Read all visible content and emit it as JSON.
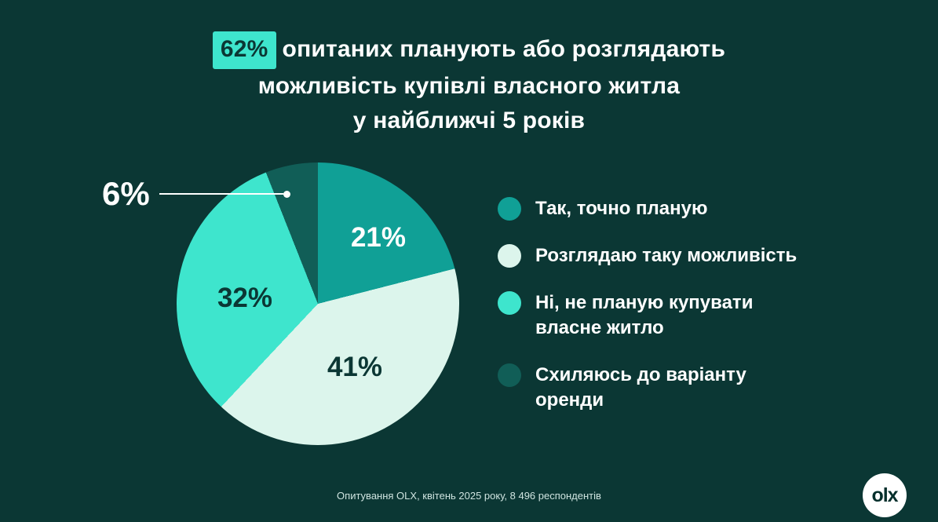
{
  "colors": {
    "background": "#0b3734",
    "text_light": "#ffffff",
    "text_dark": "#0b3734",
    "highlight_bg": "#3ee5cd",
    "callout": "#ffffff",
    "footer_text": "#cfe4e0",
    "logo_bg": "#ffffff",
    "logo_text": "#052f2c"
  },
  "title": {
    "highlight": "62%",
    "line1_rest": "опитаних планують або розглядають",
    "line2": "можливість купівлі власного житла",
    "line3": "у найближчі 5 років"
  },
  "chart_data": {
    "type": "pie",
    "title": "62% опитаних планують або розглядають можливість купівлі власного житла у найближчі 5 років",
    "legend_position": "right",
    "start_angle_deg": 0,
    "direction": "clockwise",
    "slices": [
      {
        "label": "Так, точно планую",
        "value": 21,
        "pct_label": "21%",
        "color": "#10a096"
      },
      {
        "label": "Розглядаю таку можливість",
        "value": 41,
        "pct_label": "41%",
        "color": "#dcf5ec"
      },
      {
        "label": "Ні, не планую купувати\nвласне житло",
        "value": 32,
        "pct_label": "32%",
        "color": "#3ee5cd"
      },
      {
        "label": "Схиляюсь до варіанту\nоренди",
        "value": 6,
        "pct_label": "6%",
        "color": "#115e57"
      }
    ]
  },
  "callout": {
    "label": "6%"
  },
  "footer": {
    "text": "Опитування OLX, квітень 2025 року, 8 496 респондентів"
  },
  "logo": {
    "text": "olx"
  }
}
